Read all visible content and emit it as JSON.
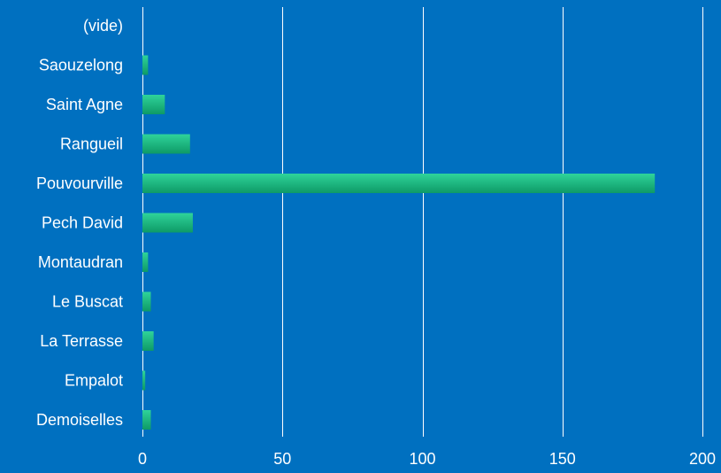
{
  "colors": {
    "background": "#0070C0",
    "gridline": "#ffffff",
    "bar_light": "#2fd39a",
    "bar_dark": "#0e9a66"
  },
  "chart_data": {
    "type": "bar",
    "orientation": "horizontal",
    "title": "",
    "xlabel": "",
    "ylabel": "",
    "categories": [
      "(vide)",
      "Saouzelong",
      "Saint Agne",
      "Rangueil",
      "Pouvourville",
      "Pech David",
      "Montaudran",
      "Le Buscat",
      "La Terrasse",
      "Empalot",
      "Demoiselles"
    ],
    "values": [
      0,
      2,
      8,
      17,
      183,
      18,
      2,
      3,
      4,
      1,
      3
    ],
    "xlim": [
      0,
      200
    ],
    "xticks": [
      0,
      50,
      100,
      150,
      200
    ],
    "grid": true,
    "legend": "none"
  }
}
